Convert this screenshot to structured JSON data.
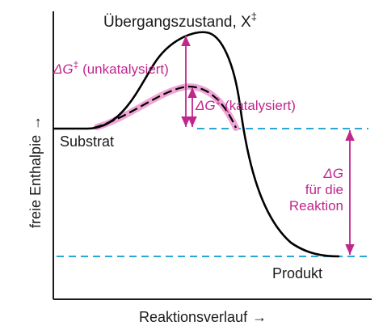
{
  "diagram": {
    "title": "Übergangszustand, X",
    "title_mark": "‡",
    "ylabel": "freie Enthalpie",
    "xlabel": "Reaktionsverlauf",
    "axis_arrow_glyph": "→",
    "substrate_label": "Substrat",
    "product_label": "Produkt",
    "uncatalyzed": {
      "symbol": "ΔG",
      "mark": "‡",
      "text": "(unkatalysiert)"
    },
    "catalyzed": {
      "symbol": "ΔG",
      "mark": "‡",
      "text": "(katalysiert)"
    },
    "reaction": {
      "symbol": "ΔG",
      "line1": "für die",
      "line2": "Reaktion"
    }
  },
  "colors": {
    "curve": "#000000",
    "annotation": "#c0268c",
    "catalyzed_highlight": "#f0a6d6",
    "reference_lines": "#2aa7d6",
    "axis": "#1a1a1a"
  }
}
